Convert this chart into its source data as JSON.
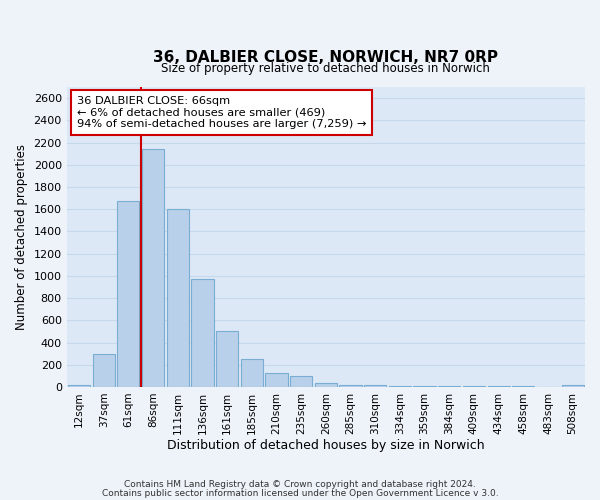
{
  "title": "36, DALBIER CLOSE, NORWICH, NR7 0RP",
  "subtitle": "Size of property relative to detached houses in Norwich",
  "xlabel": "Distribution of detached houses by size in Norwich",
  "ylabel": "Number of detached properties",
  "bar_labels": [
    "12sqm",
    "37sqm",
    "61sqm",
    "86sqm",
    "111sqm",
    "136sqm",
    "161sqm",
    "185sqm",
    "210sqm",
    "235sqm",
    "260sqm",
    "285sqm",
    "310sqm",
    "334sqm",
    "359sqm",
    "384sqm",
    "409sqm",
    "434sqm",
    "458sqm",
    "483sqm",
    "508sqm"
  ],
  "bar_values": [
    20,
    300,
    1670,
    2140,
    1600,
    970,
    505,
    255,
    130,
    100,
    35,
    20,
    15,
    10,
    10,
    5,
    5,
    5,
    5,
    0,
    20
  ],
  "bar_color": "#b8d0ea",
  "bar_edge_color": "#7aadd4",
  "vline_color": "#cc0000",
  "annotation_text": "36 DALBIER CLOSE: 66sqm\n← 6% of detached houses are smaller (469)\n94% of semi-detached houses are larger (7,259) →",
  "annotation_box_color": "#ffffff",
  "annotation_box_edge": "#cc0000",
  "ylim": [
    0,
    2700
  ],
  "yticks": [
    0,
    200,
    400,
    600,
    800,
    1000,
    1200,
    1400,
    1600,
    1800,
    2000,
    2200,
    2400,
    2600
  ],
  "footer_line1": "Contains HM Land Registry data © Crown copyright and database right 2024.",
  "footer_line2": "Contains public sector information licensed under the Open Government Licence v 3.0.",
  "bg_color": "#eef2f9",
  "plot_bg_color": "#dce8f5",
  "grid_color": "#c8d8ec"
}
